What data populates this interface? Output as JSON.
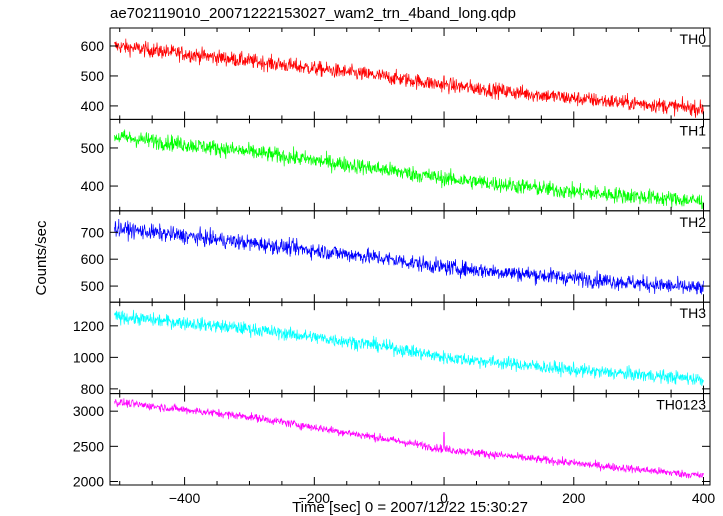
{
  "title": "ae702119010_20071222153027_wam2_trn_4band_long.qdp",
  "ylabel": "Counts/sec",
  "xlabel": "Time [sec] 0 = 2007/12/22 15:30:27",
  "chart_data": {
    "type": "line",
    "xlim": [
      -515,
      410
    ],
    "x_ticks": [
      -400,
      -200,
      0,
      200,
      400
    ],
    "x_tick_labels": [
      "−400",
      "−200",
      "0",
      "200",
      "400"
    ],
    "grid": false,
    "panels": [
      {
        "name": "TH0",
        "color": "#ff0000",
        "ylim": [
          355,
          660
        ],
        "y_ticks": [
          400,
          500,
          600
        ],
        "trend": [
          [
            -508,
            600
          ],
          [
            -300,
            550
          ],
          [
            -100,
            500
          ],
          [
            0,
            470
          ],
          [
            200,
            425
          ],
          [
            400,
            390
          ]
        ],
        "noise": 24,
        "spike": {
          "x": 0,
          "y": 500
        }
      },
      {
        "name": "TH1",
        "color": "#00ff00",
        "ylim": [
          335,
          575
        ],
        "y_ticks": [
          400,
          500
        ],
        "trend": [
          [
            -508,
            530
          ],
          [
            -300,
            490
          ],
          [
            -100,
            445
          ],
          [
            0,
            420
          ],
          [
            200,
            385
          ],
          [
            400,
            360
          ]
        ],
        "noise": 20
      },
      {
        "name": "TH2",
        "color": "#0000ff",
        "ylim": [
          440,
          780
        ],
        "y_ticks": [
          500,
          600,
          700
        ],
        "trend": [
          [
            -508,
            715
          ],
          [
            -300,
            660
          ],
          [
            -100,
            605
          ],
          [
            0,
            570
          ],
          [
            200,
            530
          ],
          [
            400,
            490
          ]
        ],
        "noise": 28
      },
      {
        "name": "TH3",
        "color": "#00ffff",
        "ylim": [
          770,
          1350
        ],
        "y_ticks": [
          800,
          1000,
          1200
        ],
        "trend": [
          [
            -508,
            1260
          ],
          [
            -300,
            1180
          ],
          [
            -100,
            1075
          ],
          [
            0,
            1000
          ],
          [
            200,
            920
          ],
          [
            400,
            860
          ]
        ],
        "noise": 40
      },
      {
        "name": "TH0123",
        "color": "#ff00ff",
        "ylim": [
          1950,
          3250
        ],
        "y_ticks": [
          2000,
          2500,
          3000
        ],
        "trend": [
          [
            -508,
            3130
          ],
          [
            -300,
            2920
          ],
          [
            -100,
            2620
          ],
          [
            0,
            2460
          ],
          [
            200,
            2260
          ],
          [
            400,
            2080
          ]
        ],
        "noise": 55,
        "spike": {
          "x": 0,
          "y": 2700
        }
      }
    ]
  }
}
